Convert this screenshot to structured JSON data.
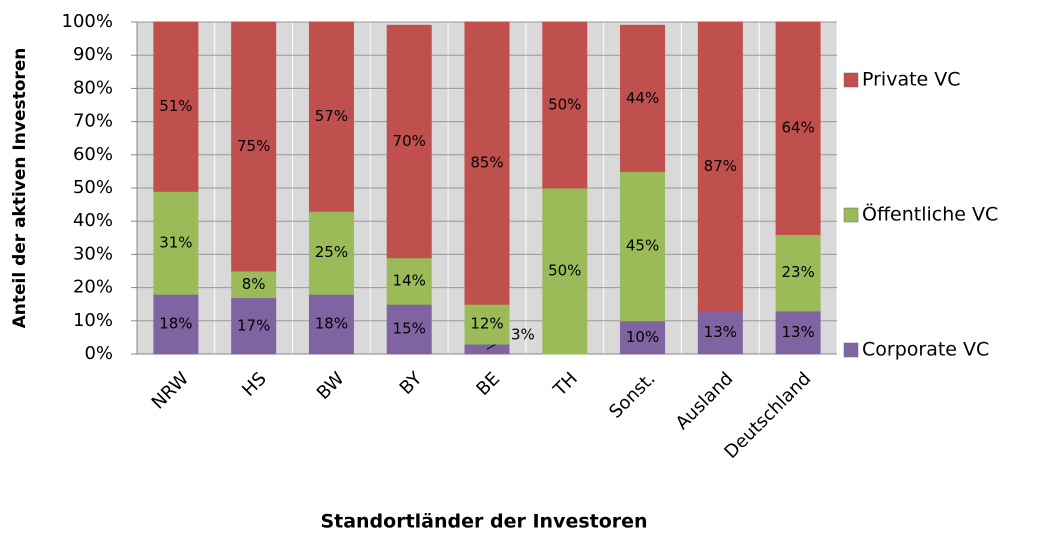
{
  "chart_data": {
    "type": "stacked_bar",
    "x_label": "Standortländer der Investoren",
    "y_label": "Anteil der aktiven Investoren",
    "categories": [
      "NRW",
      "HS",
      "BW",
      "BY",
      "BE",
      "TH",
      "Sonst.",
      "Ausland",
      "Deutschland"
    ],
    "series": [
      {
        "name": "Corporate VC",
        "color": "#8064a2",
        "values": [
          18,
          17,
          18,
          15,
          3,
          0,
          10,
          13,
          13
        ],
        "value_labels": [
          "18%",
          "17%",
          "18%",
          "15%",
          "3%",
          null,
          "10%",
          "13%",
          "13%"
        ]
      },
      {
        "name": "Öffentliche VC",
        "color": "#9bbb59",
        "values": [
          31,
          8,
          25,
          14,
          12,
          50,
          45,
          0,
          23
        ],
        "value_labels": [
          "31%",
          "8%",
          "25%",
          "14%",
          "12%",
          "50%",
          "45%",
          null,
          "23%"
        ]
      },
      {
        "name": "Private VC",
        "color": "#c0504d",
        "values": [
          51,
          75,
          57,
          70,
          85,
          50,
          44,
          87,
          64
        ],
        "value_labels": [
          "51%",
          "75%",
          "57%",
          "70%",
          "85%",
          "50%",
          "44%",
          "87%",
          "64%"
        ]
      }
    ],
    "ylim": [
      0,
      100
    ],
    "yticks": [
      {
        "value": 0,
        "label": "0%"
      },
      {
        "value": 10,
        "label": "10%"
      },
      {
        "value": 20,
        "label": "20%"
      },
      {
        "value": 30,
        "label": "30%"
      },
      {
        "value": 40,
        "label": "40%"
      },
      {
        "value": 50,
        "label": "50%"
      },
      {
        "value": 60,
        "label": "60%"
      },
      {
        "value": 70,
        "label": "70%"
      },
      {
        "value": 80,
        "label": "80%"
      },
      {
        "value": 90,
        "label": "90%"
      },
      {
        "value": 100,
        "label": "100%"
      }
    ],
    "grid": true,
    "legend": "right"
  }
}
